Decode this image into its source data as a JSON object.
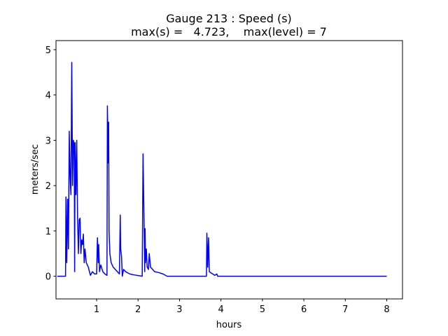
{
  "chart_data": {
    "type": "line",
    "title": [
      "Gauge 213 : Speed (s)",
      "max(s) =   4.723,    max(level) = 7"
    ],
    "x_label": "hours",
    "y_label": "meters/sec",
    "color": "#0000ff",
    "x": [
      0.05,
      0.25,
      0.26,
      0.28,
      0.3,
      0.32,
      0.34,
      0.36,
      0.38,
      0.4,
      0.42,
      0.44,
      0.46,
      0.47,
      0.48,
      0.5,
      0.52,
      0.54,
      0.56,
      0.58,
      0.6,
      0.62,
      0.64,
      0.66,
      0.68,
      0.7,
      0.72,
      0.75,
      0.8,
      0.85,
      0.9,
      0.95,
      1.0,
      1.02,
      1.04,
      1.05,
      1.07,
      1.1,
      1.15,
      1.2,
      1.25,
      1.26,
      1.28,
      1.29,
      1.3,
      1.32,
      1.35,
      1.4,
      1.5,
      1.55,
      1.57,
      1.58,
      1.6,
      1.62,
      1.65,
      1.7,
      1.8,
      1.9,
      2.1,
      2.12,
      2.14,
      2.16,
      2.17,
      2.18,
      2.2,
      2.22,
      2.25,
      2.27,
      2.3,
      2.4,
      2.5,
      2.6,
      2.7,
      3.65,
      3.66,
      3.68,
      3.7,
      3.72,
      3.75,
      3.8,
      3.85,
      3.9,
      3.92,
      8.0
    ],
    "values": [
      0,
      0,
      1.75,
      0.3,
      1.7,
      0.6,
      3.2,
      2.2,
      1.8,
      4.72,
      2.0,
      3.0,
      2.9,
      0.1,
      2.95,
      1.8,
      3.0,
      1.3,
      0.5,
      1.25,
      1.28,
      0.5,
      0.8,
      0.7,
      0.93,
      0.3,
      0.6,
      0.3,
      0.2,
      0.02,
      0.1,
      0.05,
      0.05,
      0.85,
      0.3,
      0.7,
      0.1,
      0.25,
      0.1,
      0.05,
      0.02,
      3.76,
      2.5,
      3.4,
      1.0,
      0.5,
      0.3,
      0.2,
      0.1,
      0.05,
      1.35,
      0.6,
      0.45,
      0,
      0.15,
      0.1,
      0.05,
      0.03,
      0,
      2.7,
      1.5,
      0.1,
      1.05,
      0.3,
      0.6,
      0.2,
      0.15,
      0.5,
      0.2,
      0.1,
      0.08,
      0.05,
      0,
      0,
      0.95,
      0.2,
      0.85,
      0.1,
      0.08,
      0.05,
      0.02,
      0.05,
      0,
      0
    ],
    "xlim": [
      0.02,
      8.38
    ],
    "xticks": [
      1,
      2,
      3,
      4,
      5,
      6,
      7,
      8
    ],
    "ylim": [
      -0.5,
      5.2
    ],
    "yticks": [
      0,
      1,
      2,
      3,
      4,
      5
    ],
    "grid": false
  }
}
